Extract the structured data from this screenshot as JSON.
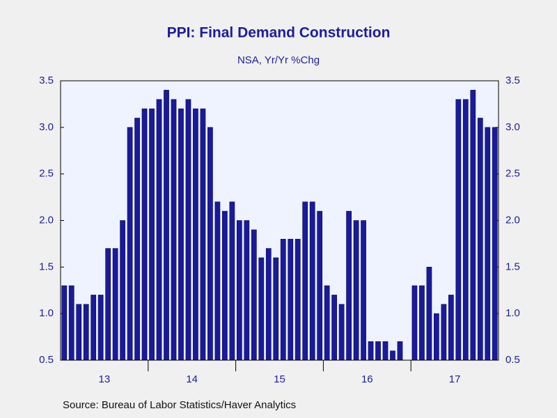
{
  "chart_data": {
    "type": "bar",
    "title": "PPI: Final Demand Construction",
    "subtitle": "NSA, Yr/Yr %Chg",
    "source": "Source:  Bureau of Labor Statistics/Haver Analytics",
    "year_labels": [
      "13",
      "14",
      "15",
      "16",
      "17"
    ],
    "values": [
      1.3,
      1.3,
      1.1,
      1.1,
      1.2,
      1.2,
      1.7,
      1.7,
      2.0,
      3.0,
      3.1,
      3.2,
      3.2,
      3.3,
      3.4,
      3.3,
      3.2,
      3.3,
      3.2,
      3.2,
      3.0,
      2.2,
      2.1,
      2.2,
      2.0,
      2.0,
      1.9,
      1.6,
      1.7,
      1.6,
      1.8,
      1.8,
      1.8,
      2.2,
      2.2,
      2.1,
      1.3,
      1.2,
      1.1,
      2.1,
      2.0,
      2.0,
      0.7,
      0.7,
      0.7,
      0.6,
      0.7,
      null,
      1.3,
      1.3,
      1.5,
      1.0,
      1.1,
      1.2,
      3.3,
      3.3,
      3.4,
      3.1,
      3.0,
      3.0
    ],
    "color": "#1a1a9c",
    "ylim": [
      0.5,
      3.5
    ],
    "yticks": [
      {
        "value": 0.5,
        "label": "0.5"
      },
      {
        "value": 1.0,
        "label": "1.0"
      },
      {
        "value": 1.5,
        "label": "1.5"
      },
      {
        "value": 2.0,
        "label": "2.0"
      },
      {
        "value": 2.5,
        "label": "2.5"
      },
      {
        "value": 3.0,
        "label": "3.0"
      },
      {
        "value": 3.5,
        "label": "3.5"
      }
    ],
    "y2lim": [
      0.5,
      3.5
    ],
    "y2ticks": [
      {
        "value": 0.5,
        "label": "0.5"
      },
      {
        "value": 1.0,
        "label": "1.0"
      },
      {
        "value": 1.5,
        "label": "1.5"
      },
      {
        "value": 2.0,
        "label": "2.0"
      },
      {
        "value": 2.5,
        "label": "2.5"
      },
      {
        "value": 3.0,
        "label": "3.0"
      },
      {
        "value": 3.5,
        "label": "3.5"
      }
    ]
  }
}
